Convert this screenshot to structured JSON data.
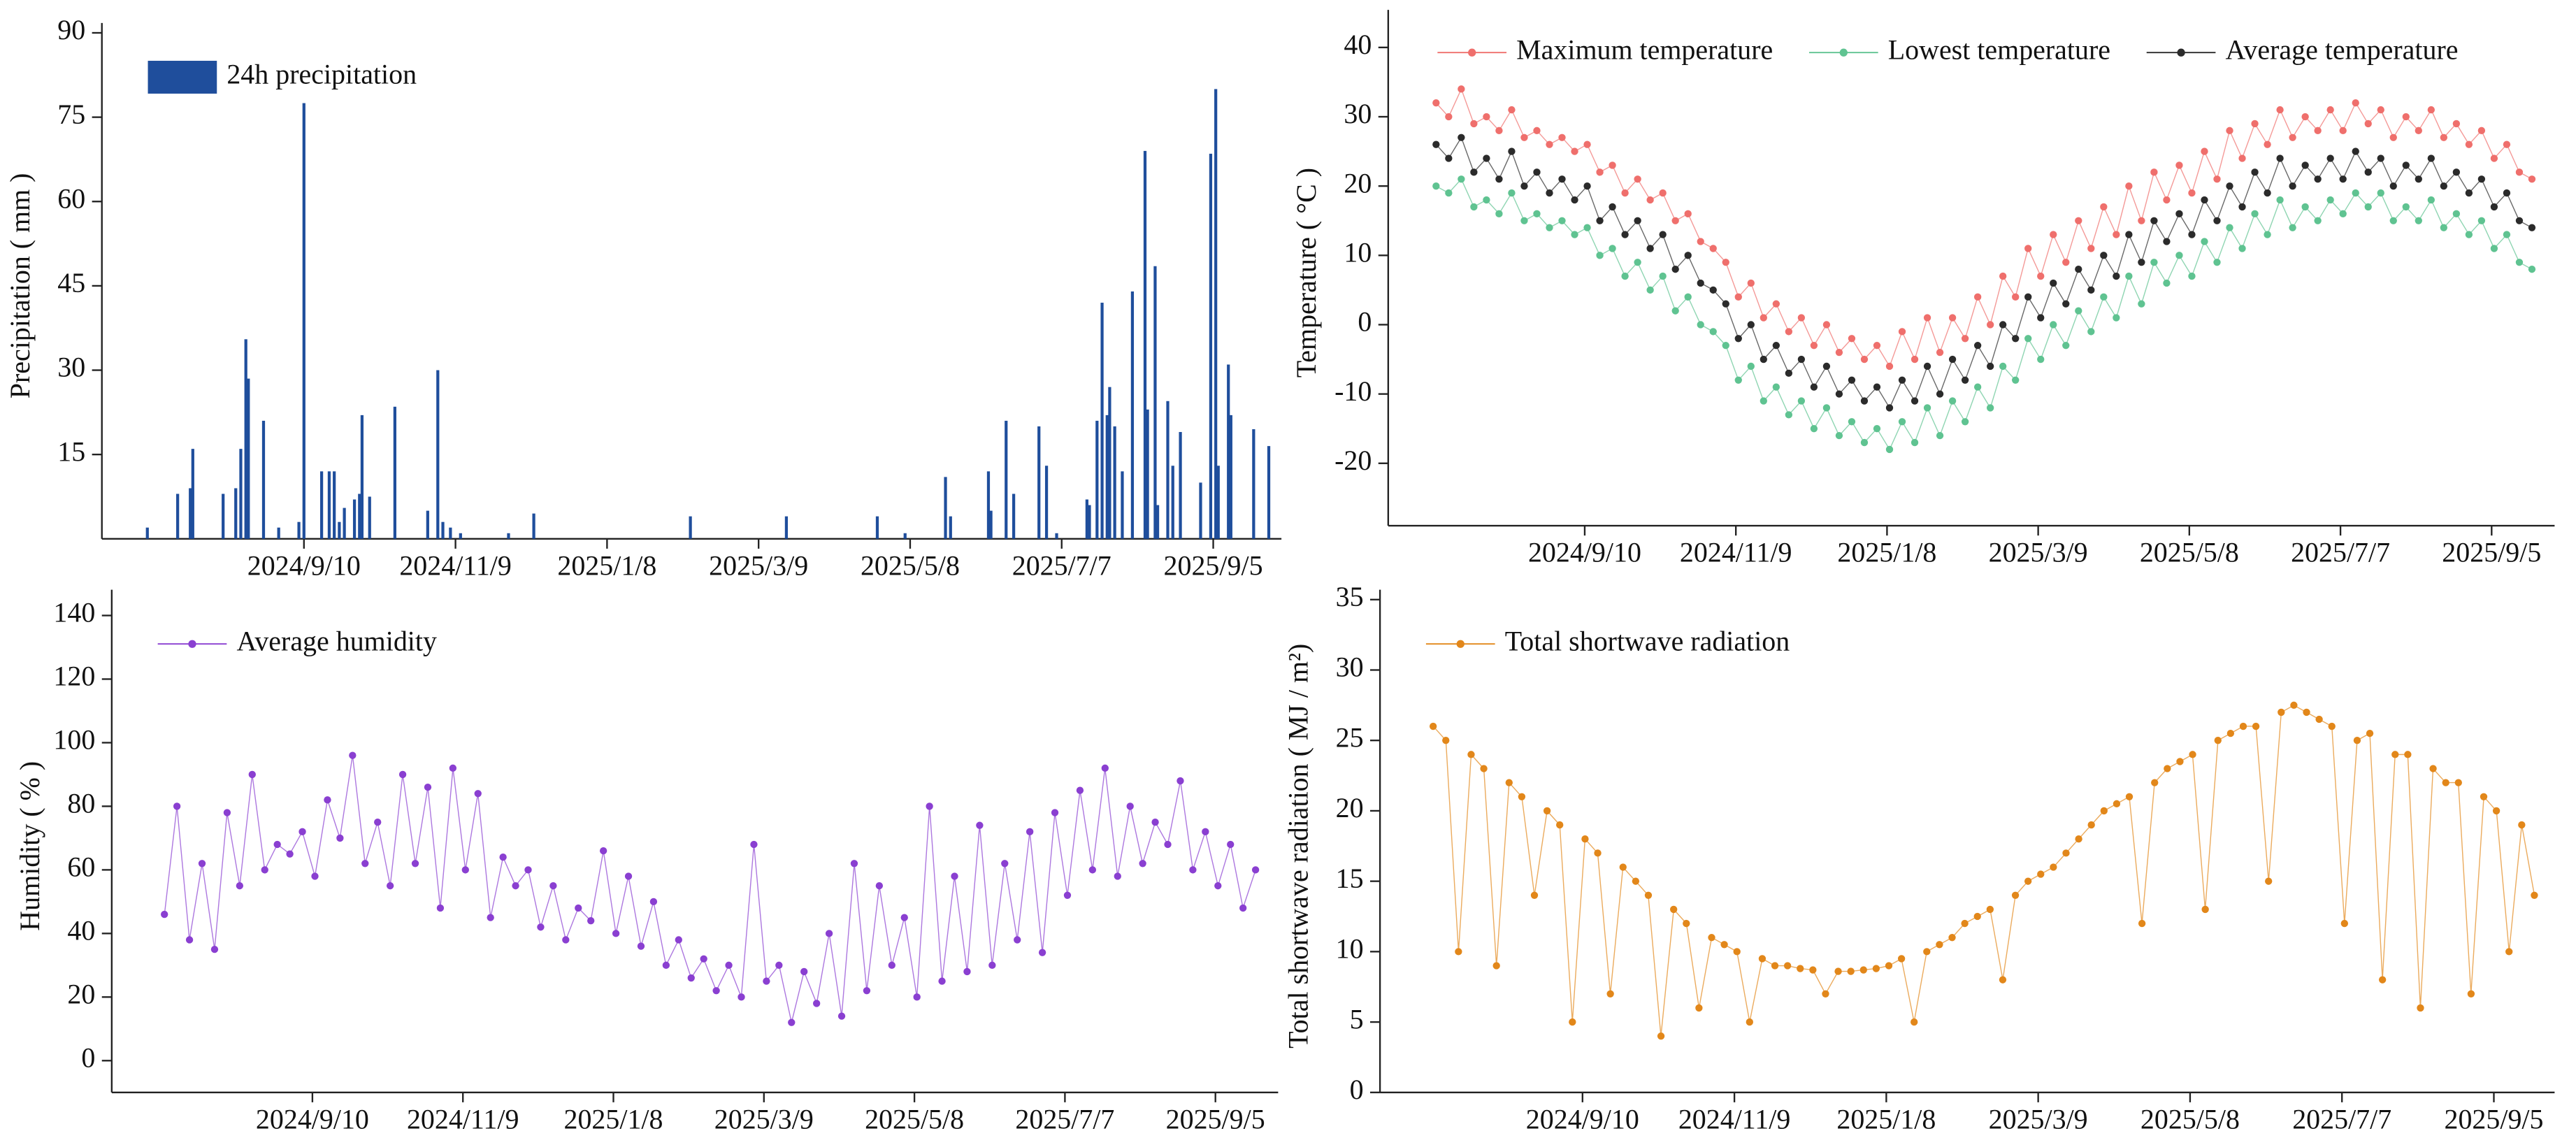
{
  "chart_data": [
    {
      "type": "bar",
      "ylabel": "Precipitation ( mm )",
      "x": [
        "2024/7/10",
        "2024/7/22",
        "2024/7/27",
        "2024/7/28",
        "2024/8/9",
        "2024/8/14",
        "2024/8/16",
        "2024/8/18",
        "2024/8/19",
        "2024/8/25",
        "2024/8/31",
        "2024/9/8",
        "2024/9/10",
        "2024/9/17",
        "2024/9/20",
        "2024/9/22",
        "2024/9/24",
        "2024/9/26",
        "2024/9/30",
        "2024/10/2",
        "2024/10/3",
        "2024/10/6",
        "2024/10/16",
        "2024/10/29",
        "2024/11/2",
        "2024/11/4",
        "2024/11/7",
        "2024/11/11",
        "2024/11/30",
        "2024/12/10",
        "2025/2/10",
        "2025/3/20",
        "2025/4/25",
        "2025/5/6",
        "2025/5/22",
        "2025/5/24",
        "2025/6/8",
        "2025/6/9",
        "2025/6/15",
        "2025/6/18",
        "2025/6/28",
        "2025/7/1",
        "2025/7/5",
        "2025/7/17",
        "2025/7/18",
        "2025/7/21",
        "2025/7/23",
        "2025/7/25",
        "2025/7/26",
        "2025/7/28",
        "2025/7/31",
        "2025/8/4",
        "2025/8/9",
        "2025/8/10",
        "2025/8/13",
        "2025/8/14",
        "2025/8/18",
        "2025/8/20",
        "2025/8/23",
        "2025/8/31",
        "2025/9/4",
        "2025/9/6",
        "2025/9/7",
        "2025/9/11",
        "2025/9/12",
        "2025/9/21",
        "2025/9/27"
      ],
      "series": [
        {
          "name": "24h precipitation",
          "color": "#1f4e9c",
          "values": [
            2,
            8,
            9,
            16,
            8,
            9,
            16,
            35.5,
            28.5,
            21,
            2,
            3,
            77.5,
            12,
            12,
            12,
            3,
            5.5,
            7,
            8,
            22,
            7.5,
            23.5,
            5,
            30,
            3,
            2,
            1,
            1,
            4.5,
            4,
            4,
            4,
            1,
            11,
            4,
            12,
            5,
            21,
            8,
            20,
            13,
            1,
            7,
            6,
            21,
            42,
            22,
            27,
            20,
            12,
            44,
            69,
            23,
            48.5,
            6,
            24.5,
            13,
            19,
            10,
            68.5,
            80,
            13,
            31,
            22,
            19.5,
            16.5
          ]
        }
      ],
      "xlim": [
        "2024/6/22",
        "2025/10/2"
      ],
      "xticks": [
        "2024/9/10",
        "2024/11/9",
        "2025/1/8",
        "2025/3/9",
        "2025/5/8",
        "2025/7/7",
        "2025/9/5"
      ],
      "ylim": [
        0,
        90
      ],
      "yticks": [
        15,
        30,
        45,
        60,
        75,
        90
      ],
      "legend": "upper left"
    },
    {
      "type": "line",
      "ylabel": "Temperature ( °C )",
      "x": [
        "2024/7/13",
        "2024/7/18",
        "2024/7/23",
        "2024/7/28",
        "2024/8/2",
        "2024/8/7",
        "2024/8/12",
        "2024/8/17",
        "2024/8/22",
        "2024/8/27",
        "2024/9/1",
        "2024/9/6",
        "2024/9/11",
        "2024/9/16",
        "2024/9/21",
        "2024/9/26",
        "2024/10/1",
        "2024/10/6",
        "2024/10/11",
        "2024/10/16",
        "2024/10/21",
        "2024/10/26",
        "2024/10/31",
        "2024/11/5",
        "2024/11/10",
        "2024/11/15",
        "2024/11/20",
        "2024/11/25",
        "2024/11/30",
        "2024/12/5",
        "2024/12/10",
        "2024/12/15",
        "2024/12/20",
        "2024/12/25",
        "2024/12/30",
        "2025/1/4",
        "2025/1/9",
        "2025/1/14",
        "2025/1/19",
        "2025/1/24",
        "2025/1/29",
        "2025/2/3",
        "2025/2/8",
        "2025/2/13",
        "2025/2/18",
        "2025/2/23",
        "2025/2/28",
        "2025/3/5",
        "2025/3/10",
        "2025/3/15",
        "2025/3/20",
        "2025/3/25",
        "2025/3/30",
        "2025/4/4",
        "2025/4/9",
        "2025/4/14",
        "2025/4/19",
        "2025/4/24",
        "2025/4/29",
        "2025/5/4",
        "2025/5/9",
        "2025/5/14",
        "2025/5/19",
        "2025/5/24",
        "2025/5/29",
        "2025/6/3",
        "2025/6/8",
        "2025/6/13",
        "2025/6/18",
        "2025/6/23",
        "2025/6/28",
        "2025/7/3",
        "2025/7/8",
        "2025/7/13",
        "2025/7/18",
        "2025/7/23",
        "2025/7/28",
        "2025/8/2",
        "2025/8/7",
        "2025/8/12",
        "2025/8/17",
        "2025/8/22",
        "2025/8/27",
        "2025/9/1",
        "2025/9/6",
        "2025/9/11",
        "2025/9/16",
        "2025/9/21"
      ],
      "series": [
        {
          "name": "Maximum temperature",
          "color": "#ef6f6c",
          "values": [
            32,
            30,
            34,
            29,
            30,
            28,
            31,
            27,
            28,
            26,
            27,
            25,
            26,
            22,
            23,
            19,
            21,
            18,
            19,
            15,
            16,
            12,
            11,
            9,
            4,
            6,
            1,
            3,
            -1,
            1,
            -3,
            0,
            -4,
            -2,
            -5,
            -3,
            -6,
            -1,
            -5,
            1,
            -4,
            1,
            -2,
            4,
            0,
            7,
            4,
            11,
            7,
            13,
            9,
            15,
            11,
            17,
            13,
            20,
            15,
            22,
            18,
            23,
            19,
            25,
            21,
            28,
            24,
            29,
            26,
            31,
            27,
            30,
            28,
            31,
            28,
            32,
            29,
            31,
            27,
            30,
            28,
            31,
            27,
            29,
            26,
            28,
            24,
            26,
            22,
            21
          ]
        },
        {
          "name": "Lowest temperature",
          "color": "#5fc391",
          "values": [
            20,
            19,
            21,
            17,
            18,
            16,
            19,
            15,
            16,
            14,
            15,
            13,
            14,
            10,
            11,
            7,
            9,
            5,
            7,
            2,
            4,
            0,
            -1,
            -3,
            -8,
            -6,
            -11,
            -9,
            -13,
            -11,
            -15,
            -12,
            -16,
            -14,
            -17,
            -15,
            -18,
            -14,
            -17,
            -12,
            -16,
            -11,
            -14,
            -9,
            -12,
            -6,
            -8,
            -2,
            -5,
            0,
            -3,
            2,
            -1,
            4,
            1,
            7,
            3,
            9,
            6,
            10,
            7,
            12,
            9,
            14,
            11,
            16,
            13,
            18,
            14,
            17,
            15,
            18,
            16,
            19,
            17,
            19,
            15,
            17,
            15,
            18,
            14,
            16,
            13,
            15,
            11,
            13,
            9,
            8
          ]
        },
        {
          "name": "Average temperature",
          "color": "#2b2b2b",
          "values": [
            26,
            24,
            27,
            22,
            24,
            21,
            25,
            20,
            22,
            19,
            21,
            18,
            20,
            15,
            17,
            13,
            15,
            11,
            13,
            8,
            10,
            6,
            5,
            3,
            -2,
            0,
            -5,
            -3,
            -7,
            -5,
            -9,
            -6,
            -10,
            -8,
            -11,
            -9,
            -12,
            -8,
            -11,
            -6,
            -10,
            -5,
            -8,
            -3,
            -6,
            0,
            -2,
            4,
            1,
            6,
            3,
            8,
            5,
            10,
            7,
            13,
            9,
            15,
            12,
            16,
            13,
            18,
            15,
            20,
            17,
            22,
            19,
            24,
            20,
            23,
            21,
            24,
            21,
            25,
            22,
            24,
            20,
            23,
            21,
            24,
            20,
            22,
            19,
            21,
            17,
            19,
            15,
            14
          ]
        }
      ],
      "xlim": [
        "2024/6/24",
        "2025/9/30"
      ],
      "xticks": [
        "2024/9/10",
        "2024/11/9",
        "2025/1/8",
        "2025/3/9",
        "2025/5/8",
        "2025/7/7",
        "2025/9/5"
      ],
      "ylim": [
        -29,
        44
      ],
      "yticks": [
        -20,
        -10,
        0,
        10,
        20,
        30,
        40
      ],
      "legend": "top"
    },
    {
      "type": "line",
      "ylabel": "Humidity ( % )",
      "x": [
        "2024/7/13",
        "2024/7/18",
        "2024/7/23",
        "2024/7/28",
        "2024/8/2",
        "2024/8/7",
        "2024/8/12",
        "2024/8/17",
        "2024/8/22",
        "2024/8/27",
        "2024/9/1",
        "2024/9/6",
        "2024/9/11",
        "2024/9/16",
        "2024/9/21",
        "2024/9/26",
        "2024/10/1",
        "2024/10/6",
        "2024/10/11",
        "2024/10/16",
        "2024/10/21",
        "2024/10/26",
        "2024/10/31",
        "2024/11/5",
        "2024/11/10",
        "2024/11/15",
        "2024/11/20",
        "2024/11/25",
        "2024/11/30",
        "2024/12/5",
        "2024/12/10",
        "2024/12/15",
        "2024/12/20",
        "2024/12/25",
        "2024/12/30",
        "2025/1/4",
        "2025/1/9",
        "2025/1/14",
        "2025/1/19",
        "2025/1/24",
        "2025/1/29",
        "2025/2/3",
        "2025/2/8",
        "2025/2/13",
        "2025/2/18",
        "2025/2/23",
        "2025/2/28",
        "2025/3/5",
        "2025/3/10",
        "2025/3/15",
        "2025/3/20",
        "2025/3/25",
        "2025/3/30",
        "2025/4/4",
        "2025/4/9",
        "2025/4/14",
        "2025/4/19",
        "2025/4/24",
        "2025/4/29",
        "2025/5/4",
        "2025/5/9",
        "2025/5/14",
        "2025/5/19",
        "2025/5/24",
        "2025/5/29",
        "2025/6/3",
        "2025/6/8",
        "2025/6/13",
        "2025/6/18",
        "2025/6/23",
        "2025/6/28",
        "2025/7/3",
        "2025/7/8",
        "2025/7/13",
        "2025/7/18",
        "2025/7/23",
        "2025/7/28",
        "2025/8/2",
        "2025/8/7",
        "2025/8/12",
        "2025/8/17",
        "2025/8/22",
        "2025/8/27",
        "2025/9/1",
        "2025/9/6",
        "2025/9/11",
        "2025/9/16",
        "2025/9/21"
      ],
      "series": [
        {
          "name": "Average humidity",
          "color": "#8a3fd1",
          "values": [
            46,
            80,
            38,
            62,
            35,
            78,
            55,
            90,
            60,
            68,
            65,
            72,
            58,
            82,
            70,
            96,
            62,
            75,
            55,
            90,
            62,
            86,
            48,
            92,
            60,
            84,
            45,
            64,
            55,
            60,
            42,
            55,
            38,
            48,
            44,
            66,
            40,
            58,
            36,
            50,
            30,
            38,
            26,
            32,
            22,
            30,
            20,
            68,
            25,
            30,
            12,
            28,
            18,
            40,
            14,
            62,
            22,
            55,
            30,
            45,
            20,
            80,
            25,
            58,
            28,
            74,
            30,
            62,
            38,
            72,
            34,
            78,
            52,
            85,
            60,
            92,
            58,
            80,
            62,
            75,
            68,
            88,
            60,
            72,
            55,
            68,
            48,
            60
          ]
        }
      ],
      "xlim": [
        "2024/6/22",
        "2025/9/30"
      ],
      "xticks": [
        "2024/9/10",
        "2024/11/9",
        "2025/1/8",
        "2025/3/9",
        "2025/5/8",
        "2025/7/7",
        "2025/9/5"
      ],
      "ylim": [
        -10,
        145
      ],
      "yticks": [
        0,
        20,
        40,
        60,
        80,
        100,
        120,
        140
      ],
      "legend": "upper left"
    },
    {
      "type": "line",
      "ylabel": "Total shortwave radiation ( MJ / m²)",
      "x": [
        "2024/7/13",
        "2024/7/18",
        "2024/7/23",
        "2024/7/28",
        "2024/8/2",
        "2024/8/7",
        "2024/8/12",
        "2024/8/17",
        "2024/8/22",
        "2024/8/27",
        "2024/9/1",
        "2024/9/6",
        "2024/9/11",
        "2024/9/16",
        "2024/9/21",
        "2024/9/26",
        "2024/10/1",
        "2024/10/6",
        "2024/10/11",
        "2024/10/16",
        "2024/10/21",
        "2024/10/26",
        "2024/10/31",
        "2024/11/5",
        "2024/11/10",
        "2024/11/15",
        "2024/11/20",
        "2024/11/25",
        "2024/11/30",
        "2024/12/5",
        "2024/12/10",
        "2024/12/15",
        "2024/12/20",
        "2024/12/25",
        "2024/12/30",
        "2025/1/4",
        "2025/1/9",
        "2025/1/14",
        "2025/1/19",
        "2025/1/24",
        "2025/1/29",
        "2025/2/3",
        "2025/2/8",
        "2025/2/13",
        "2025/2/18",
        "2025/2/23",
        "2025/2/28",
        "2025/3/5",
        "2025/3/10",
        "2025/3/15",
        "2025/3/20",
        "2025/3/25",
        "2025/3/30",
        "2025/4/4",
        "2025/4/9",
        "2025/4/14",
        "2025/4/19",
        "2025/4/24",
        "2025/4/29",
        "2025/5/4",
        "2025/5/9",
        "2025/5/14",
        "2025/5/19",
        "2025/5/24",
        "2025/5/29",
        "2025/6/3",
        "2025/6/8",
        "2025/6/13",
        "2025/6/18",
        "2025/6/23",
        "2025/6/28",
        "2025/7/3",
        "2025/7/8",
        "2025/7/13",
        "2025/7/18",
        "2025/7/23",
        "2025/7/28",
        "2025/8/2",
        "2025/8/7",
        "2025/8/12",
        "2025/8/17",
        "2025/8/22",
        "2025/8/27",
        "2025/9/1",
        "2025/9/6",
        "2025/9/11",
        "2025/9/16",
        "2025/9/21"
      ],
      "series": [
        {
          "name": "Total shortwave radiation",
          "color": "#e2871a",
          "values": [
            26,
            25,
            10,
            24,
            23,
            9,
            22,
            21,
            14,
            20,
            19,
            5,
            18,
            17,
            7,
            16,
            15,
            14,
            4,
            13,
            12,
            6,
            11,
            10.5,
            10,
            5,
            9.5,
            9,
            9,
            8.8,
            8.7,
            7,
            8.6,
            8.6,
            8.7,
            8.8,
            9,
            9.5,
            5,
            10,
            10.5,
            11,
            12,
            12.5,
            13,
            8,
            14,
            15,
            15.5,
            16,
            17,
            18,
            19,
            20,
            20.5,
            21,
            12,
            22,
            23,
            23.5,
            24,
            13,
            25,
            25.5,
            26,
            26,
            15,
            27,
            27.5,
            27,
            26.5,
            26,
            12,
            25,
            25.5,
            8,
            24,
            24,
            6,
            23,
            22,
            22,
            7,
            21,
            20,
            10,
            19,
            14
          ]
        }
      ],
      "xlim": [
        "2024/6/22",
        "2025/9/29"
      ],
      "xticks": [
        "2024/9/10",
        "2024/11/9",
        "2025/1/8",
        "2025/3/9",
        "2025/5/8",
        "2025/7/7",
        "2025/9/5"
      ],
      "ylim": [
        0,
        35
      ],
      "yticks": [
        0,
        5,
        10,
        15,
        20,
        25,
        30,
        35
      ],
      "legend": "upper left"
    }
  ]
}
